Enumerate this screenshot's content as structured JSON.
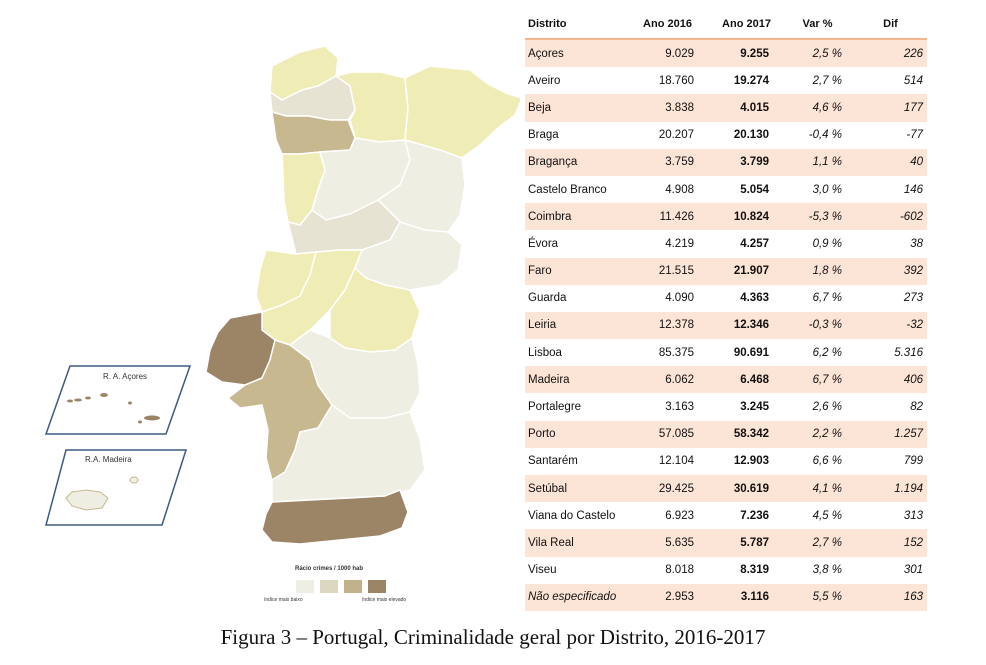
{
  "map": {
    "inset_acores_label": "R. A. Açores",
    "inset_madeira_label": "R.A. Madeira",
    "legend": {
      "title": "Rácio crimes / 1000 hab",
      "low_label": "índice mais baixo",
      "high_label": "índice mais elevado",
      "colors": [
        "#efeee3",
        "#dcd7c1",
        "#c1b18a",
        "#9c8566"
      ]
    },
    "region_colors": {
      "yellow": "#f0ecb6",
      "light": "#efeee3",
      "lighter2": "#e6e3d2",
      "medium": "#c7b890",
      "dark": "#9c8566"
    }
  },
  "table": {
    "headers": [
      "Distrito",
      "Ano 2016",
      "Ano 2017",
      "Var %",
      "Dif"
    ],
    "rows": [
      {
        "distrito": "Açores",
        "ano2016": "9.029",
        "ano2017": "9.255",
        "var": "2,5 %",
        "dif": "226"
      },
      {
        "distrito": "Aveiro",
        "ano2016": "18.760",
        "ano2017": "19.274",
        "var": "2,7 %",
        "dif": "514"
      },
      {
        "distrito": "Beja",
        "ano2016": "3.838",
        "ano2017": "4.015",
        "var": "4,6 %",
        "dif": "177"
      },
      {
        "distrito": "Braga",
        "ano2016": "20.207",
        "ano2017": "20.130",
        "var": "-0,4 %",
        "dif": "-77"
      },
      {
        "distrito": "Bragança",
        "ano2016": "3.759",
        "ano2017": "3.799",
        "var": "1,1 %",
        "dif": "40"
      },
      {
        "distrito": "Castelo Branco",
        "ano2016": "4.908",
        "ano2017": "5.054",
        "var": "3,0 %",
        "dif": "146"
      },
      {
        "distrito": "Coimbra",
        "ano2016": "11.426",
        "ano2017": "10.824",
        "var": "-5,3 %",
        "dif": "-602"
      },
      {
        "distrito": "Évora",
        "ano2016": "4.219",
        "ano2017": "4.257",
        "var": "0,9 %",
        "dif": "38"
      },
      {
        "distrito": "Faro",
        "ano2016": "21.515",
        "ano2017": "21.907",
        "var": "1,8 %",
        "dif": "392"
      },
      {
        "distrito": "Guarda",
        "ano2016": "4.090",
        "ano2017": "4.363",
        "var": "6,7 %",
        "dif": "273"
      },
      {
        "distrito": "Leiria",
        "ano2016": "12.378",
        "ano2017": "12.346",
        "var": "-0,3 %",
        "dif": "-32"
      },
      {
        "distrito": "Lisboa",
        "ano2016": "85.375",
        "ano2017": "90.691",
        "var": "6,2 %",
        "dif": "5.316"
      },
      {
        "distrito": "Madeira",
        "ano2016": "6.062",
        "ano2017": "6.468",
        "var": "6,7 %",
        "dif": "406"
      },
      {
        "distrito": "Portalegre",
        "ano2016": "3.163",
        "ano2017": "3.245",
        "var": "2,6 %",
        "dif": "82"
      },
      {
        "distrito": "Porto",
        "ano2016": "57.085",
        "ano2017": "58.342",
        "var": "2,2 %",
        "dif": "1.257"
      },
      {
        "distrito": "Santarém",
        "ano2016": "12.104",
        "ano2017": "12.903",
        "var": "6,6 %",
        "dif": "799"
      },
      {
        "distrito": "Setúbal",
        "ano2016": "29.425",
        "ano2017": "30.619",
        "var": "4,1 %",
        "dif": "1.194"
      },
      {
        "distrito": "Viana do Castelo",
        "ano2016": "6.923",
        "ano2017": "7.236",
        "var": "4,5 %",
        "dif": "313"
      },
      {
        "distrito": "Vila Real",
        "ano2016": "5.635",
        "ano2017": "5.787",
        "var": "2,7 %",
        "dif": "152"
      },
      {
        "distrito": "Viseu",
        "ano2016": "8.018",
        "ano2017": "8.319",
        "var": "3,8 %",
        "dif": "301"
      },
      {
        "distrito": "Não especificado",
        "ano2016": "2.953",
        "ano2017": "3.116",
        "var": "5,5 %",
        "dif": "163"
      }
    ],
    "row_shade_color": "#fce4d6",
    "header_rule_color": "#f3b68f"
  },
  "caption": "Figura 3 – Portugal, Criminalidade geral por Distrito, 2016-2017"
}
